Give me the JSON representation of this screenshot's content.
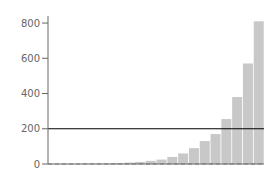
{
  "chart_data": {
    "type": "bar",
    "categories": [
      null,
      null,
      null,
      null,
      null,
      null,
      null,
      null,
      null,
      null,
      null,
      null,
      null,
      null,
      null,
      null,
      null,
      null,
      null,
      null
    ],
    "values": [
      1,
      1,
      1,
      2,
      2,
      3,
      5,
      8,
      12,
      18,
      25,
      40,
      60,
      90,
      130,
      170,
      255,
      380,
      570,
      810
    ],
    "color": "#c8c8c8",
    "ylim": [
      0,
      840
    ],
    "yticks": [
      0,
      200,
      400,
      600,
      800
    ],
    "grid": false,
    "tick_labels": "y",
    "reference_lines": [
      {
        "y": 0,
        "color": "#888888",
        "line_style": "dashed"
      },
      {
        "y": 200,
        "color": "#000000",
        "line_style": "solid"
      }
    ]
  }
}
